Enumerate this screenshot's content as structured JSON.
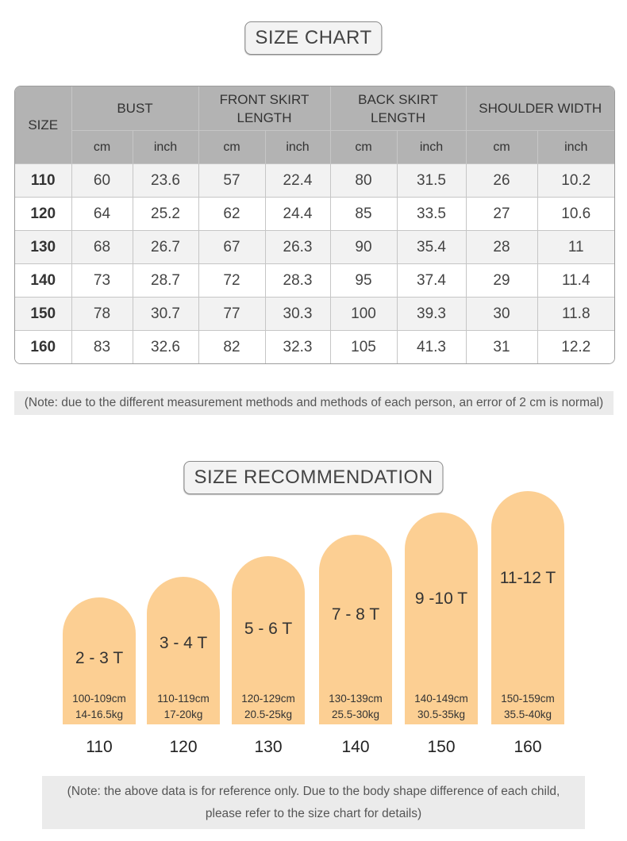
{
  "size_chart": {
    "title": "SIZE CHART",
    "size_header": "SIZE",
    "groups": [
      {
        "label": "BUST",
        "units": [
          "cm",
          "inch"
        ]
      },
      {
        "label": "FRONT SKIRT LENGTH",
        "units": [
          "cm",
          "inch"
        ]
      },
      {
        "label": "BACK SKIRT LENGTH",
        "units": [
          "cm",
          "inch"
        ]
      },
      {
        "label": "SHOULDER WIDTH",
        "units": [
          "cm",
          "inch"
        ]
      }
    ],
    "rows": [
      [
        "110",
        "60",
        "23.6",
        "57",
        "22.4",
        "80",
        "31.5",
        "26",
        "10.2"
      ],
      [
        "120",
        "64",
        "25.2",
        "62",
        "24.4",
        "85",
        "33.5",
        "27",
        "10.6"
      ],
      [
        "130",
        "68",
        "26.7",
        "67",
        "26.3",
        "90",
        "35.4",
        "28",
        "11"
      ],
      [
        "140",
        "73",
        "28.7",
        "72",
        "28.3",
        "95",
        "37.4",
        "29",
        "11.4"
      ],
      [
        "150",
        "78",
        "30.7",
        "77",
        "30.3",
        "100",
        "39.3",
        "30",
        "11.8"
      ],
      [
        "160",
        "83",
        "32.6",
        "82",
        "32.3",
        "105",
        "41.3",
        "31",
        "12.2"
      ]
    ],
    "note": "(Note: due to the different measurement methods and methods of each person, an error of 2 cm is normal)"
  },
  "recommendation": {
    "title": "SIZE RECOMMENDATION",
    "items": [
      {
        "age": "2 - 3 T",
        "height": "100-109cm",
        "weight": "14-16.5kg",
        "size": "110"
      },
      {
        "age": "3 - 4 T",
        "height": "110-119cm",
        "weight": "17-20kg",
        "size": "120"
      },
      {
        "age": "5 - 6 T",
        "height": "120-129cm",
        "weight": "20.5-25kg",
        "size": "130"
      },
      {
        "age": "7 - 8 T",
        "height": "130-139cm",
        "weight": "25.5-30kg",
        "size": "140"
      },
      {
        "age": "9 -10 T",
        "height": "140-149cm",
        "weight": "30.5-35kg",
        "size": "150"
      },
      {
        "age": "11-12 T",
        "height": "150-159cm",
        "weight": "35.5-40kg",
        "size": "160"
      }
    ],
    "note_line1": "(Note: the above data is for reference only. Due to the body shape difference of each child,",
    "note_line2": "please refer to the size chart for details)"
  },
  "colors": {
    "arch_fill": "#fccf93",
    "header_gray": "#b3b3b3",
    "note_bg": "#ebebeb"
  }
}
